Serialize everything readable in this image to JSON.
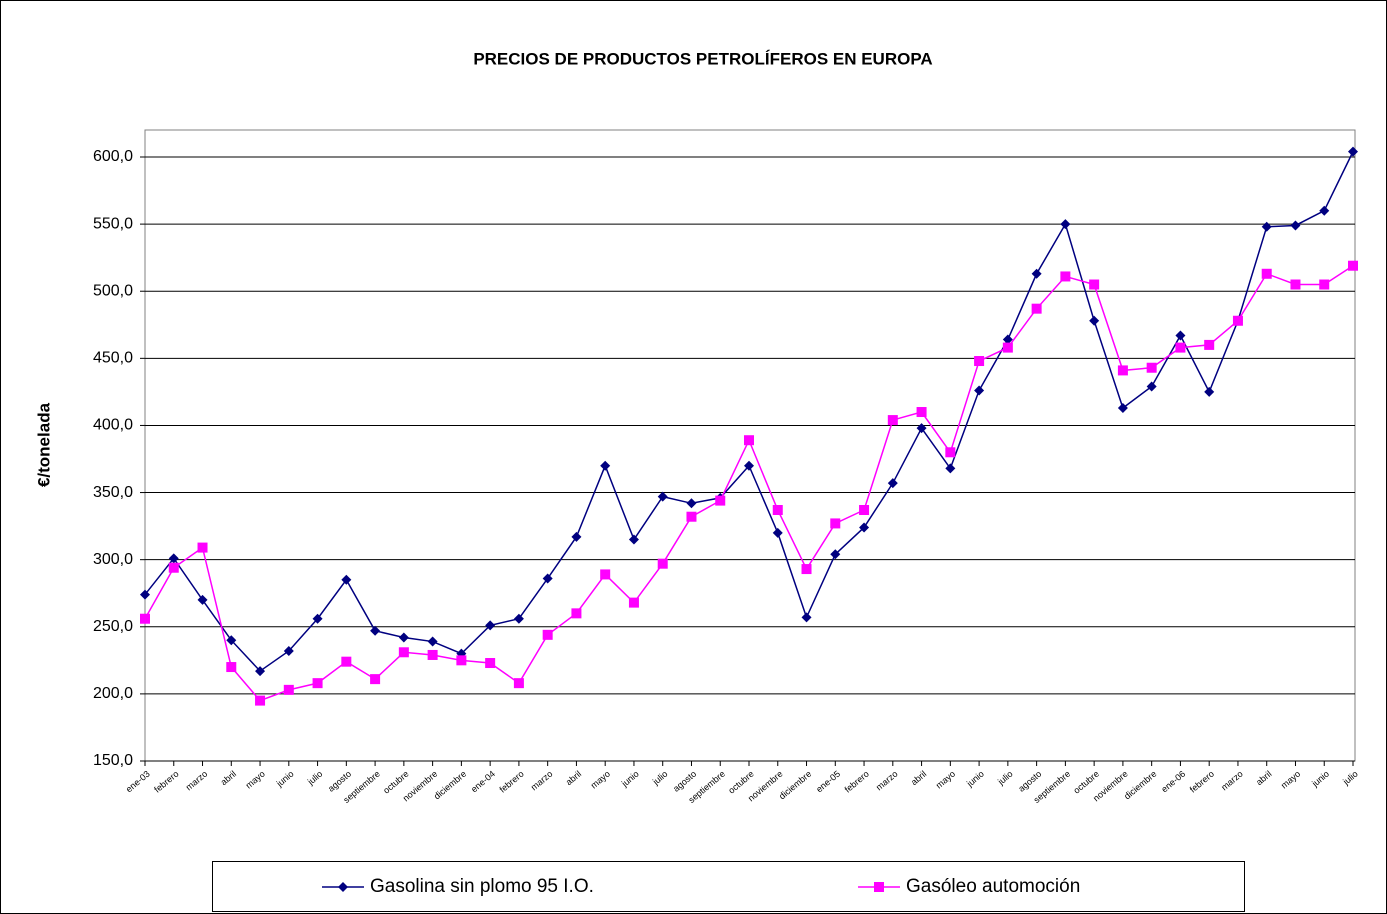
{
  "chart_data": {
    "type": "line",
    "title": "PRECIOS DE PRODUCTOS PETROLÍFEROS EN EUROPA",
    "y_label": "€/tonelada",
    "categories": [
      "ene-03",
      "febrero",
      "marzo",
      "abril",
      "mayo",
      "junio",
      "julio",
      "agosto",
      "septiembre",
      "octubre",
      "noviembre",
      "diciembre",
      "ene-04",
      "febrero",
      "marzo",
      "abril",
      "mayo",
      "junio",
      "julio",
      "agosto",
      "septiembre",
      "octubre",
      "noviembre",
      "diciembre",
      "ene-05",
      "febrero",
      "marzo",
      "abril",
      "mayo",
      "junio",
      "julio",
      "agosto",
      "septiembre",
      "octubre",
      "noviembre",
      "diciembre",
      "ene-06",
      "febrero",
      "marzo",
      "abril",
      "mayo",
      "junio",
      "julio"
    ],
    "series": [
      {
        "name": "Gasolina sin plomo 95 I.O.",
        "color": "#000080",
        "marker": "diamond",
        "values": [
          274,
          301,
          270,
          240,
          217,
          232,
          256,
          285,
          247,
          242,
          239,
          230,
          251,
          256,
          286,
          317,
          370,
          315,
          347,
          342,
          346,
          370,
          320,
          257,
          304,
          324,
          357,
          398,
          368,
          426,
          464,
          513,
          550,
          478,
          413,
          429,
          467,
          425,
          478,
          548,
          549,
          560,
          604
        ]
      },
      {
        "name": "Gasóleo automoción",
        "color": "#ff00ff",
        "marker": "square",
        "values": [
          256,
          294,
          309,
          220,
          195,
          203,
          208,
          224,
          211,
          231,
          229,
          225,
          223,
          208,
          244,
          260,
          289,
          268,
          297,
          332,
          344,
          389,
          337,
          293,
          327,
          337,
          404,
          410,
          380,
          448,
          458,
          487,
          511,
          505,
          441,
          443,
          458,
          460,
          478,
          513,
          505,
          505,
          519
        ]
      }
    ],
    "ylim": [
      150,
      600
    ],
    "yticks": [
      {
        "value": 150,
        "label": "150,0"
      },
      {
        "value": 200,
        "label": "200,0"
      },
      {
        "value": 250,
        "label": "250,0"
      },
      {
        "value": 300,
        "label": "300,0"
      },
      {
        "value": 350,
        "label": "350,0"
      },
      {
        "value": 400,
        "label": "400,0"
      },
      {
        "value": 450,
        "label": "450,0"
      },
      {
        "value": 500,
        "label": "500,0"
      },
      {
        "value": 550,
        "label": "550,0"
      },
      {
        "value": 600,
        "label": "600,0"
      }
    ],
    "grid": true,
    "legend": "bottom"
  }
}
